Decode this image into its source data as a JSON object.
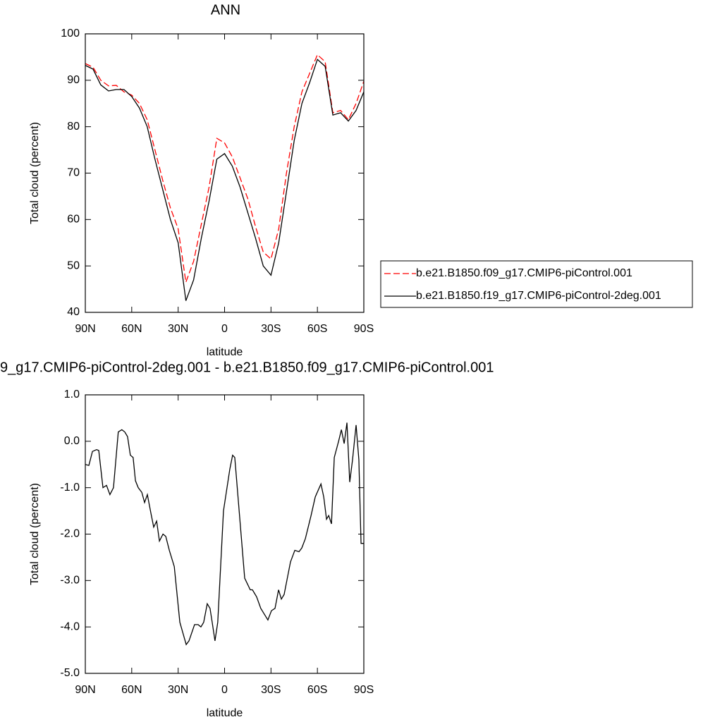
{
  "chart_data": [
    {
      "type": "line",
      "title": "ANN",
      "x_label": "latitude",
      "y_label": "Total cloud (percent)",
      "x": [
        90,
        85,
        80,
        75,
        70,
        65,
        60,
        55,
        50,
        45,
        40,
        35,
        30,
        25,
        20,
        15,
        10,
        5,
        0,
        -5,
        -10,
        -15,
        -20,
        -25,
        -30,
        -35,
        -40,
        -45,
        -50,
        -55,
        -60,
        -65,
        -70,
        -75,
        -80,
        -85,
        -90
      ],
      "series": [
        {
          "name": "b.e21.B1850.f09_g17.CMIP6-piControl.001",
          "color": "#ff0000",
          "line_style": "dashed",
          "values": [
            93.6,
            92.8,
            90.0,
            88.8,
            88.9,
            87.5,
            86.8,
            85.0,
            81.5,
            75.0,
            68.5,
            62.5,
            58.0,
            46.5,
            51.0,
            59.0,
            67.0,
            77.5,
            76.5,
            73.5,
            69.0,
            64.5,
            58.5,
            53.0,
            51.5,
            58.0,
            70.0,
            80.0,
            87.5,
            91.5,
            95.5,
            94.0,
            83.0,
            83.5,
            81.5,
            85.0,
            89.8
          ]
        },
        {
          "name": "b.e21.B1850.f19_g17.CMIP6-piControl-2deg.001",
          "color": "#000000",
          "line_style": "solid",
          "values": [
            93.2,
            92.4,
            89.0,
            87.7,
            88.0,
            88.0,
            86.5,
            84.0,
            80.0,
            73.0,
            66.5,
            60.0,
            55.0,
            42.5,
            47.0,
            56.0,
            64.0,
            73.0,
            74.2,
            71.5,
            67.0,
            61.5,
            56.0,
            50.0,
            48.0,
            55.0,
            66.0,
            77.0,
            85.0,
            89.5,
            94.5,
            93.0,
            82.5,
            83.0,
            81.2,
            83.5,
            87.5
          ]
        }
      ],
      "xlim": [
        90,
        -90
      ],
      "xticks": [
        {
          "value": 90,
          "label": "90N"
        },
        {
          "value": 60,
          "label": "60N"
        },
        {
          "value": 30,
          "label": "30N"
        },
        0,
        {
          "value": -30,
          "label": "30S"
        },
        {
          "value": -60,
          "label": "60S"
        },
        {
          "value": -90,
          "label": "90S"
        }
      ],
      "ylim": [
        40,
        100
      ],
      "yticks": [
        40,
        50,
        60,
        70,
        80,
        90,
        100
      ],
      "legend": "right"
    },
    {
      "type": "line",
      "title": "9_g17.CMIP6-piControl-2deg.001 - b.e21.B1850.f09_g17.CMIP6-piControl.001",
      "x_label": "latitude",
      "y_label": "Total cloud (percent)",
      "x": [
        90,
        87.7,
        85.4,
        82.7,
        81.3,
        78.6,
        76.3,
        74.1,
        71.8,
        68.7,
        66.4,
        64.5,
        62.7,
        60.9,
        59.1,
        57.6,
        55.8,
        53.5,
        51.7,
        49.9,
        47.6,
        45.8,
        43.9,
        42.1,
        39.8,
        38.0,
        35.7,
        32.5,
        28.9,
        24.8,
        23.0,
        19.4,
        17.1,
        15.3,
        13.5,
        11.2,
        9.4,
        8.0,
        6.2,
        4.4,
        0.7,
        -3.4,
        -5.2,
        -6.6,
        -13.0,
        -16.6,
        -18.0,
        -20.7,
        -23.4,
        -28.0,
        -30.3,
        -32.6,
        -34.9,
        -36.7,
        -38.5,
        -42.6,
        -45.4,
        -48.1,
        -49.9,
        -52.2,
        -55.9,
        -58.6,
        -62.3,
        -64.1,
        -65.9,
        -67.3,
        -69.1,
        -70.9,
        -73.7,
        -75.5,
        -77.3,
        -79.1,
        -80.9,
        -82.7,
        -85.0,
        -86.8,
        -88.2,
        -90
      ],
      "values": [
        -0.5,
        -0.52,
        -0.22,
        -0.18,
        -0.2,
        -1.0,
        -0.95,
        -1.15,
        -1.0,
        0.2,
        0.25,
        0.2,
        0.1,
        -0.3,
        -0.35,
        -0.85,
        -1.0,
        -1.1,
        -1.32,
        -1.15,
        -1.55,
        -1.85,
        -1.72,
        -2.15,
        -2.0,
        -2.05,
        -2.35,
        -2.7,
        -3.9,
        -4.38,
        -4.3,
        -3.95,
        -3.95,
        -4.0,
        -3.9,
        -3.5,
        -3.6,
        -3.9,
        -4.3,
        -3.9,
        -1.5,
        -0.6,
        -0.3,
        -0.35,
        -2.95,
        -3.2,
        -3.2,
        -3.35,
        -3.6,
        -3.85,
        -3.65,
        -3.6,
        -3.2,
        -3.4,
        -3.3,
        -2.6,
        -2.35,
        -2.38,
        -2.3,
        -2.1,
        -1.6,
        -1.2,
        -0.92,
        -1.2,
        -1.68,
        -1.6,
        -1.78,
        -0.35,
        0.0,
        0.25,
        -0.05,
        0.4,
        -0.88,
        -0.4,
        0.35,
        -0.4,
        -2.2,
        -2.2
      ],
      "color": "#000000",
      "xlim": [
        90,
        -90
      ],
      "xticks": [
        {
          "value": 90,
          "label": "90N"
        },
        {
          "value": 60,
          "label": "60N"
        },
        {
          "value": 30,
          "label": "30N"
        },
        0,
        {
          "value": -30,
          "label": "30S"
        },
        {
          "value": -60,
          "label": "60S"
        },
        {
          "value": -90,
          "label": "90S"
        }
      ],
      "ylim": [
        -5,
        1
      ],
      "yticks": [
        {
          "value": -5,
          "label": "-5.0"
        },
        {
          "value": -4,
          "label": "-4.0"
        },
        {
          "value": -3,
          "label": "-3.0"
        },
        {
          "value": -2,
          "label": "-2.0"
        },
        {
          "value": -1,
          "label": "-1.0"
        },
        {
          "value": 0,
          "label": "0.0"
        },
        {
          "value": 1,
          "label": "1.0"
        }
      ]
    }
  ]
}
